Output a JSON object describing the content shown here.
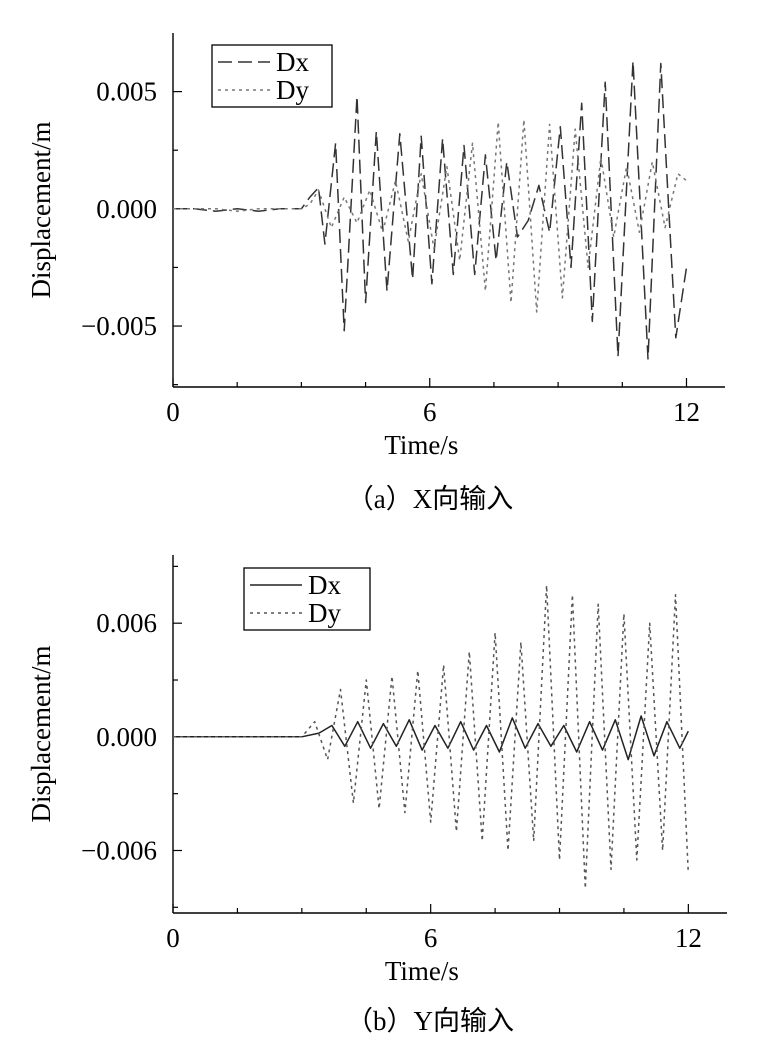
{
  "chart_data": [
    {
      "type": "line",
      "caption": "（a）X向输入",
      "xlabel": "Time/s",
      "ylabel": "Displacement/m",
      "xlim": [
        0,
        12.9
      ],
      "ylim": [
        -0.0076,
        0.0075
      ],
      "xticks": [
        "0",
        "6",
        "12"
      ],
      "xtick_values": [
        0,
        6,
        12
      ],
      "yticks": [
        "0.005",
        "0.000",
        "−0.005"
      ],
      "ytick_values": [
        0.005,
        0.0,
        -0.005
      ],
      "legend_position": "top-left",
      "series": [
        {
          "name": "Dx",
          "style": "dashed",
          "color": "#333333",
          "x": [
            0,
            0.5,
            1.0,
            1.5,
            2.0,
            2.5,
            3.0,
            3.2,
            3.4,
            3.55,
            3.8,
            4.0,
            4.3,
            4.5,
            4.75,
            5.0,
            5.3,
            5.6,
            5.8,
            6.05,
            6.3,
            6.55,
            6.8,
            7.05,
            7.3,
            7.55,
            7.8,
            8.05,
            8.3,
            8.55,
            8.8,
            9.05,
            9.3,
            9.55,
            9.8,
            10.1,
            10.4,
            10.75,
            11.1,
            11.4,
            11.75,
            12.0
          ],
          "y": [
            0,
            0,
            -0.0001,
            0,
            -0.0001,
            0,
            0,
            0.0005,
            0.0009,
            -0.0015,
            0.0028,
            -0.0052,
            0.0048,
            -0.004,
            0.0033,
            -0.0035,
            0.0032,
            -0.003,
            0.0031,
            -0.0032,
            0.003,
            -0.0028,
            0.0027,
            -0.0028,
            0.0023,
            -0.0022,
            0.002,
            -0.0012,
            -0.0005,
            0.001,
            -0.001,
            0.0035,
            -0.0025,
            0.0045,
            -0.0048,
            0.0054,
            -0.0063,
            0.0063,
            -0.0064,
            0.0062,
            -0.0055,
            -0.0025
          ]
        },
        {
          "name": "Dy",
          "style": "dotted",
          "color": "#777777",
          "x": [
            0,
            0.5,
            1.0,
            1.5,
            2.0,
            2.5,
            3.0,
            3.2,
            3.4,
            3.7,
            4.0,
            4.3,
            4.6,
            4.9,
            5.2,
            5.5,
            5.8,
            6.1,
            6.4,
            6.7,
            7.0,
            7.3,
            7.6,
            7.9,
            8.2,
            8.5,
            8.8,
            9.1,
            9.4,
            9.7,
            10.0,
            10.3,
            10.6,
            10.9,
            11.2,
            11.5,
            11.8,
            12.0
          ],
          "y": [
            0,
            0,
            0,
            -0.0001,
            0,
            0,
            0,
            0.0002,
            0.0008,
            -0.0008,
            0.0005,
            -0.0006,
            0.0008,
            -0.001,
            0.0012,
            -0.0014,
            0.0015,
            -0.0017,
            0.0018,
            -0.0022,
            0.0028,
            -0.0035,
            0.0037,
            -0.004,
            0.0038,
            -0.0044,
            0.0036,
            -0.0038,
            0.0034,
            -0.0025,
            0.0022,
            -0.0012,
            0.0018,
            -0.001,
            0.002,
            -0.0008,
            0.0015,
            0.0012
          ]
        }
      ]
    },
    {
      "type": "line",
      "caption": "（b）Y向输入",
      "xlabel": "Time/s",
      "ylabel": "Displacement/m",
      "xlim": [
        0,
        12.9
      ],
      "ylim": [
        -0.0093,
        0.0096
      ],
      "xticks": [
        "0",
        "6",
        "12"
      ],
      "xtick_values": [
        0,
        6,
        12
      ],
      "yticks": [
        "0.006",
        "0.000",
        "−0.006"
      ],
      "ytick_values": [
        0.006,
        0.0,
        -0.006
      ],
      "legend_position": "top-left",
      "series": [
        {
          "name": "Dx",
          "style": "solid",
          "color": "#222222",
          "x": [
            0,
            1.0,
            2.0,
            3.0,
            3.4,
            3.7,
            4.0,
            4.3,
            4.6,
            4.9,
            5.2,
            5.5,
            5.8,
            6.1,
            6.4,
            6.7,
            7.0,
            7.3,
            7.6,
            7.9,
            8.2,
            8.5,
            8.8,
            9.1,
            9.4,
            9.7,
            10.0,
            10.3,
            10.6,
            10.9,
            11.2,
            11.5,
            11.8,
            12.0
          ],
          "y": [
            0,
            0,
            0,
            0,
            0.0002,
            0.0006,
            -0.0005,
            0.0008,
            -0.0006,
            0.0007,
            -0.0005,
            0.0009,
            -0.0007,
            0.0006,
            -0.0006,
            0.0008,
            -0.0007,
            0.0006,
            -0.0008,
            0.001,
            -0.0006,
            0.0007,
            -0.0005,
            0.0006,
            -0.0008,
            0.0008,
            -0.0007,
            0.0009,
            -0.0012,
            0.0011,
            -0.001,
            0.0008,
            -0.0006,
            0.0003
          ]
        },
        {
          "name": "Dy",
          "style": "dotted",
          "color": "#555555",
          "x": [
            0,
            1.0,
            2.0,
            3.0,
            3.3,
            3.6,
            3.9,
            4.2,
            4.5,
            4.8,
            5.1,
            5.4,
            5.7,
            6.0,
            6.3,
            6.6,
            6.9,
            7.2,
            7.5,
            7.8,
            8.1,
            8.4,
            8.7,
            9.0,
            9.3,
            9.6,
            9.9,
            10.2,
            10.5,
            10.8,
            11.1,
            11.4,
            11.7,
            12.0
          ],
          "y": [
            0,
            0,
            0,
            0,
            0.0008,
            -0.0012,
            0.0025,
            -0.0035,
            0.003,
            -0.0038,
            0.0032,
            -0.004,
            0.0035,
            -0.0045,
            0.0038,
            -0.005,
            0.0045,
            -0.0055,
            0.0055,
            -0.006,
            0.005,
            -0.0055,
            0.008,
            -0.0065,
            0.0075,
            -0.008,
            0.007,
            -0.007,
            0.0065,
            -0.0065,
            0.006,
            -0.006,
            0.0075,
            -0.0072
          ]
        }
      ]
    }
  ]
}
